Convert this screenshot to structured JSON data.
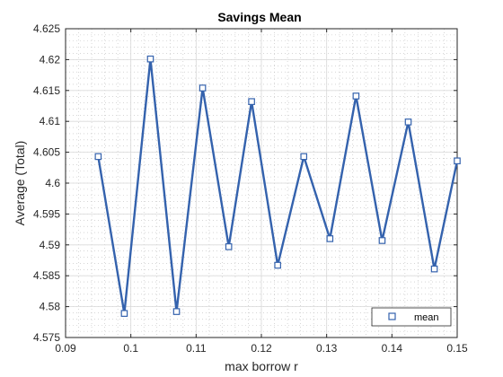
{
  "chart_data": {
    "type": "line",
    "title": "Savings Mean",
    "xlabel": "max borrow r",
    "ylabel": "Average (Total)",
    "xlim": [
      0.09,
      0.15
    ],
    "ylim": [
      4.575,
      4.625
    ],
    "grid": true,
    "minor_grid": true,
    "legend_placement": "bottom-right",
    "x_ticks": [
      "0.09",
      "0.1",
      "0.11",
      "0.12",
      "0.13",
      "0.14",
      "0.15"
    ],
    "x_tick_values": [
      0.09,
      0.1,
      0.11,
      0.12,
      0.13,
      0.14,
      0.15
    ],
    "y_ticks": [
      "4.575",
      "4.58",
      "4.585",
      "4.59",
      "4.595",
      "4.6",
      "4.605",
      "4.61",
      "4.615",
      "4.62",
      "4.625"
    ],
    "y_tick_values": [
      4.575,
      4.58,
      4.585,
      4.59,
      4.595,
      4.6,
      4.605,
      4.61,
      4.615,
      4.62,
      4.625
    ],
    "series": [
      {
        "name": "mean",
        "color": "#3462ad",
        "marker": "square",
        "x": [
          0.095,
          0.099,
          0.103,
          0.107,
          0.111,
          0.115,
          0.1185,
          0.1225,
          0.1265,
          0.1305,
          0.1345,
          0.1385,
          0.1425,
          0.1465,
          0.15
        ],
        "y": [
          4.6043,
          4.5789,
          4.6201,
          4.5792,
          4.6154,
          4.5897,
          4.6132,
          4.5867,
          4.6043,
          4.591,
          4.6141,
          4.5907,
          4.6099,
          4.5861,
          4.6036
        ]
      }
    ]
  }
}
